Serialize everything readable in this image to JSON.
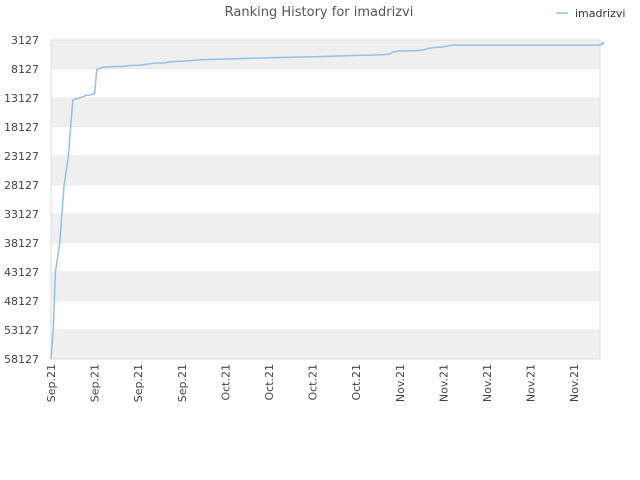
{
  "chart_data": {
    "type": "line",
    "title": "Ranking History for imadrizvi",
    "xlabel": "",
    "ylabel": "",
    "y_inverted": true,
    "ylim": [
      58127,
      3127
    ],
    "y_ticks": [
      3127,
      8127,
      13127,
      18127,
      23127,
      28127,
      33127,
      38127,
      43127,
      48127,
      53127,
      58127
    ],
    "x_ticks": [
      "Sep.21",
      "Sep.21",
      "Sep.21",
      "Sep.21",
      "Oct.21",
      "Oct.21",
      "Oct.21",
      "Oct.21",
      "Nov.21",
      "Nov.21",
      "Nov.21",
      "Nov.21",
      "Nov.21"
    ],
    "grid": "alternating horizontal bands",
    "legend_position": "top-right",
    "series": [
      {
        "name": "imadrizvi",
        "color": "#90c0ec",
        "x": [
          0.0,
          0.05,
          0.1,
          0.2,
          0.3,
          0.4,
          0.5,
          0.6,
          0.7,
          0.8,
          0.9,
          1.0,
          1.05,
          1.2,
          1.5,
          1.65,
          1.75,
          1.85,
          2.0,
          2.4,
          2.6,
          2.65,
          2.7,
          3.0,
          3.5,
          4.0,
          4.5,
          5.0,
          5.5,
          6.0,
          6.5,
          7.0,
          7.5,
          7.75,
          7.85,
          8.0,
          8.2,
          8.5,
          8.7,
          9.0,
          9.2,
          9.5,
          10.0,
          11.0,
          12.0,
          12.6,
          12.65
        ],
        "values": [
          58127,
          53127,
          43127,
          38127,
          28127,
          23127,
          13500,
          13200,
          13000,
          12700,
          12600,
          12400,
          8200,
          7800,
          7700,
          7700,
          7600,
          7500,
          7500,
          7100,
          7100,
          7000,
          6900,
          6800,
          6500,
          6400,
          6300,
          6200,
          6100,
          6000,
          5900,
          5800,
          5700,
          5600,
          5200,
          5000,
          5000,
          4900,
          4500,
          4300,
          4000,
          4000,
          4000,
          4000,
          4000,
          4000,
          3700
        ]
      }
    ]
  }
}
